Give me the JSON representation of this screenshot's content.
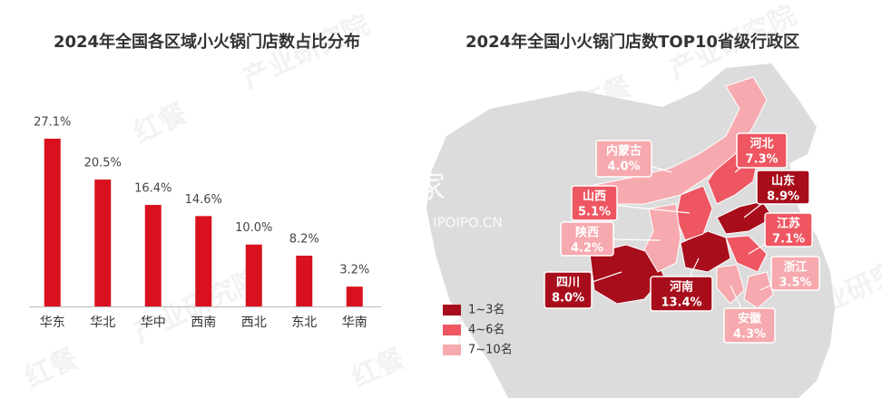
{
  "chart_data": [
    {
      "type": "bar",
      "title": "2024年全国各区域小火锅门店数占比分布",
      "categories": [
        "华东",
        "华北",
        "华中",
        "西南",
        "西北",
        "东北",
        "华南"
      ],
      "values": [
        27.1,
        20.5,
        16.4,
        14.6,
        10.0,
        8.2,
        3.2
      ],
      "value_labels": [
        "27.1%",
        "20.5%",
        "16.4%",
        "14.6%",
        "10.0%",
        "8.2%",
        "3.2%"
      ],
      "color": "#d9111f"
    },
    {
      "type": "map",
      "title": "2024年全国小火锅门店数TOP10省级行政区",
      "legend": [
        {
          "name": "1~3名",
          "color": "#a80d1b"
        },
        {
          "name": "4~6名",
          "color": "#ee5661"
        },
        {
          "name": "7~10名",
          "color": "#f6a9ae"
        }
      ],
      "regions": [
        {
          "name": "河南",
          "value": 13.4,
          "value_label": "13.4%",
          "tier": 0
        },
        {
          "name": "山东",
          "value": 8.9,
          "value_label": "8.9%",
          "tier": 0
        },
        {
          "name": "四川",
          "value": 8.0,
          "value_label": "8.0%",
          "tier": 0
        },
        {
          "name": "河北",
          "value": 7.3,
          "value_label": "7.3%",
          "tier": 1
        },
        {
          "name": "江苏",
          "value": 7.1,
          "value_label": "7.1%",
          "tier": 1
        },
        {
          "name": "山西",
          "value": 5.1,
          "value_label": "5.1%",
          "tier": 1
        },
        {
          "name": "安徽",
          "value": 4.3,
          "value_label": "4.3%",
          "tier": 2
        },
        {
          "name": "陕西",
          "value": 4.2,
          "value_label": "4.2%",
          "tier": 2
        },
        {
          "name": "内蒙古",
          "value": 4.0,
          "value_label": "4.0%",
          "tier": 2
        },
        {
          "name": "浙江",
          "value": 3.5,
          "value_label": "3.5%",
          "tier": 2
        }
      ]
    }
  ],
  "watermarks": [
    "红餐",
    "产业研究院",
    "并购家",
    "行业报告 IPOIPO.CN"
  ]
}
